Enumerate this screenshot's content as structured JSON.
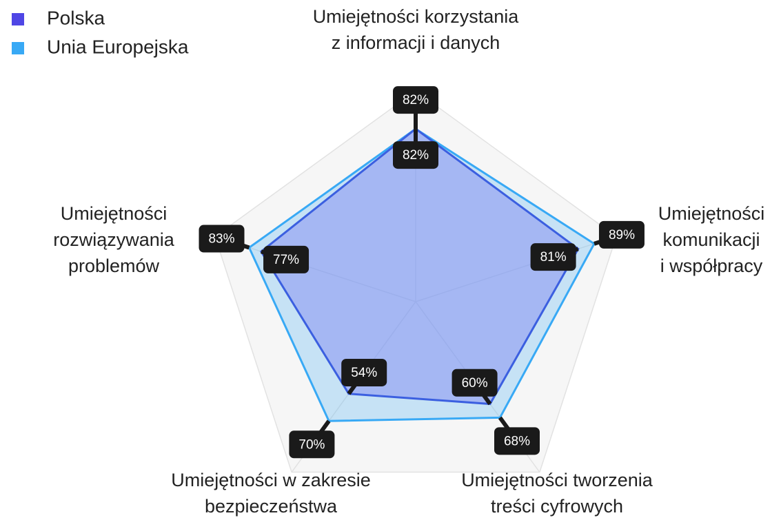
{
  "chart_data": {
    "type": "radar",
    "categories": [
      [
        "Umiejętności korzystania",
        "z informacji i danych"
      ],
      [
        "Umiejętności",
        "komunikacji",
        "i współpracy"
      ],
      [
        "Umiejętności tworzenia",
        "treści cyfrowych"
      ],
      [
        "Umiejętności w zakresie",
        "bezpieczeństwa"
      ],
      [
        "Umiejętności",
        "rozwiązywania",
        "problemów"
      ]
    ],
    "series": [
      {
        "name": "Polska",
        "color": "#4f46e5",
        "values": [
          82,
          81,
          60,
          54,
          77
        ],
        "value_labels": [
          "82%",
          "81%",
          "60%",
          "54%",
          "77%"
        ]
      },
      {
        "name": "Unia Europejska",
        "color": "#38a9f5",
        "values": [
          82,
          89,
          68,
          70,
          83
        ],
        "value_labels": [
          "82%",
          "89%",
          "68%",
          "70%",
          "83%"
        ]
      }
    ],
    "rlim": [
      0,
      100
    ],
    "grid": true,
    "legend": "top-left"
  }
}
